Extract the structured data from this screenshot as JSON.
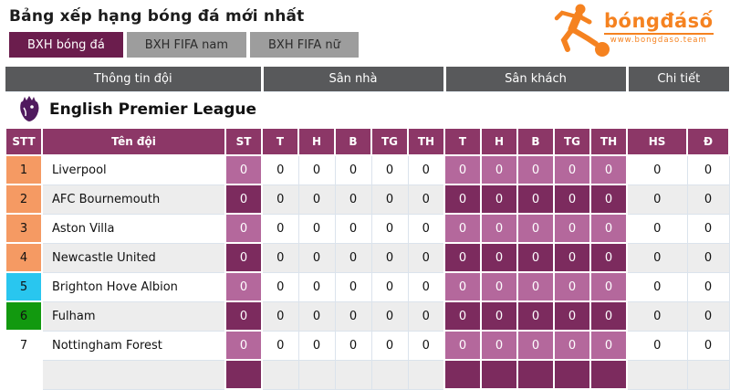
{
  "page": {
    "title": "Bảng xếp hạng bóng đá mới nhất"
  },
  "logo": {
    "brand": "bóngđásố",
    "site": "www.bongdaso.team",
    "color": "#f58220"
  },
  "tabs": [
    {
      "label": "BXH bóng đá",
      "active": true
    },
    {
      "label": "BXH FIFA nam",
      "active": false
    },
    {
      "label": "BXH FIFA nữ",
      "active": false
    }
  ],
  "table": {
    "groups": [
      "Thông tin đội",
      "Sân nhà",
      "Sân khách",
      "Chi tiết"
    ],
    "league": "English Premier League",
    "columns": [
      "STT",
      "Tên đội",
      "ST",
      "T",
      "H",
      "B",
      "TG",
      "TH",
      "T",
      "H",
      "B",
      "TG",
      "TH",
      "HS",
      "Đ"
    ],
    "rows": [
      {
        "pos": "1",
        "pos_color": "#f59a63",
        "team": "Liverpool",
        "stats": [
          "0",
          "0",
          "0",
          "0",
          "0",
          "0",
          "0",
          "0",
          "0",
          "0",
          "0",
          "0",
          "0"
        ]
      },
      {
        "pos": "2",
        "pos_color": "#f59a63",
        "team": "AFC Bournemouth",
        "stats": [
          "0",
          "0",
          "0",
          "0",
          "0",
          "0",
          "0",
          "0",
          "0",
          "0",
          "0",
          "0",
          "0"
        ]
      },
      {
        "pos": "3",
        "pos_color": "#f59a63",
        "team": "Aston Villa",
        "stats": [
          "0",
          "0",
          "0",
          "0",
          "0",
          "0",
          "0",
          "0",
          "0",
          "0",
          "0",
          "0",
          "0"
        ]
      },
      {
        "pos": "4",
        "pos_color": "#f59a63",
        "team": "Newcastle United",
        "stats": [
          "0",
          "0",
          "0",
          "0",
          "0",
          "0",
          "0",
          "0",
          "0",
          "0",
          "0",
          "0",
          "0"
        ]
      },
      {
        "pos": "5",
        "pos_color": "#29c6ef",
        "team": "Brighton Hove Albion",
        "stats": [
          "0",
          "0",
          "0",
          "0",
          "0",
          "0",
          "0",
          "0",
          "0",
          "0",
          "0",
          "0",
          "0"
        ]
      },
      {
        "pos": "6",
        "pos_color": "#12990f",
        "team": "Fulham",
        "stats": [
          "0",
          "0",
          "0",
          "0",
          "0",
          "0",
          "0",
          "0",
          "0",
          "0",
          "0",
          "0",
          "0"
        ]
      },
      {
        "pos": "7",
        "pos_color": "",
        "team": "Nottingham Forest",
        "stats": [
          "0",
          "0",
          "0",
          "0",
          "0",
          "0",
          "0",
          "0",
          "0",
          "0",
          "0",
          "0",
          "0"
        ]
      }
    ]
  },
  "colors": {
    "tab_active": "#6b1d4d",
    "tab_inactive": "#9d9d9d",
    "group_header": "#58595b",
    "column_header": "#8c3767",
    "cell_purple_light": "#b4689c",
    "cell_purple_dark": "#7c2b5e",
    "row_alt": "#ededed",
    "pos_top": "#f59a63",
    "pos_blue": "#29c6ef",
    "pos_green": "#12990f",
    "brand_orange": "#f58220"
  }
}
